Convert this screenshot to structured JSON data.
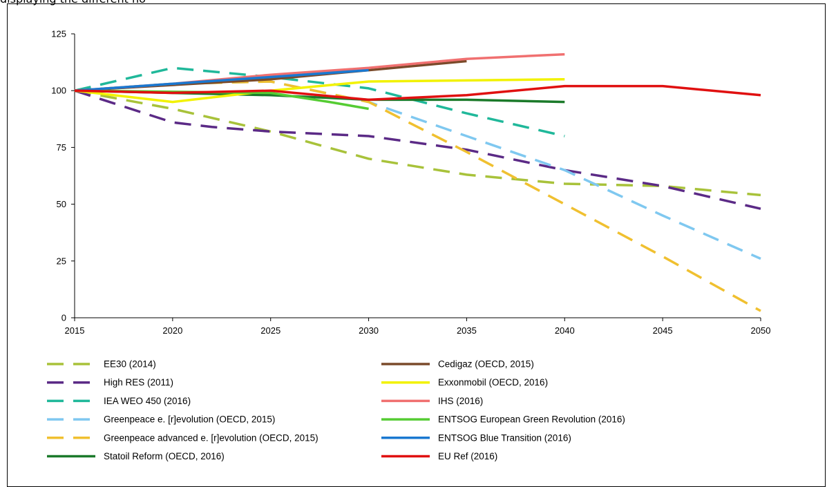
{
  "header_fragment": "displaying the different ho",
  "chart_data": {
    "type": "line",
    "title": "",
    "xlabel": "",
    "ylabel": "",
    "xlim": [
      2015,
      2050
    ],
    "ylim": [
      0,
      125
    ],
    "x_ticks": [
      2015,
      2020,
      2025,
      2030,
      2035,
      2040,
      2045,
      2050
    ],
    "y_ticks": [
      0,
      25,
      50,
      75,
      100,
      125
    ],
    "grid": false,
    "legend_position": "bottom",
    "series": [
      {
        "name": "EE30 (2014)",
        "color": "#a8c23a",
        "dashed": true,
        "points": [
          [
            2015,
            100
          ],
          [
            2020,
            92
          ],
          [
            2025,
            82
          ],
          [
            2030,
            70
          ],
          [
            2035,
            63
          ],
          [
            2040,
            59
          ],
          [
            2045,
            58
          ],
          [
            2050,
            54
          ]
        ]
      },
      {
        "name": "High RES (2011)",
        "color": "#5b2a86",
        "dashed": true,
        "points": [
          [
            2015,
            100
          ],
          [
            2020,
            86
          ],
          [
            2022,
            84
          ],
          [
            2025,
            82
          ],
          [
            2030,
            80
          ],
          [
            2035,
            74
          ],
          [
            2040,
            65
          ],
          [
            2045,
            58
          ],
          [
            2050,
            48
          ]
        ]
      },
      {
        "name": "IEA WEO 450 (2016)",
        "color": "#20b89a",
        "dashed": true,
        "points": [
          [
            2015,
            100
          ],
          [
            2020,
            110
          ],
          [
            2025,
            106
          ],
          [
            2030,
            101
          ],
          [
            2035,
            90
          ],
          [
            2040,
            80
          ]
        ]
      },
      {
        "name": "Greenpeace e. [r]evolution (OECD, 2015)",
        "color": "#7fc8f0",
        "dashed": true,
        "points": [
          [
            2015,
            100
          ],
          [
            2020,
            103
          ],
          [
            2025,
            104
          ],
          [
            2030,
            95
          ],
          [
            2035,
            80
          ],
          [
            2040,
            65
          ],
          [
            2045,
            45
          ],
          [
            2050,
            26
          ]
        ]
      },
      {
        "name": "Greenpeace advanced e. [r]evolution (OECD, 2015)",
        "color": "#f0c030",
        "dashed": true,
        "points": [
          [
            2015,
            100
          ],
          [
            2020,
            103
          ],
          [
            2025,
            104
          ],
          [
            2030,
            95
          ],
          [
            2035,
            73
          ],
          [
            2040,
            50
          ],
          [
            2045,
            27
          ],
          [
            2050,
            3
          ]
        ]
      },
      {
        "name": "Statoil Reform (OECD, 2016)",
        "color": "#1b7a2a",
        "dashed": false,
        "points": [
          [
            2015,
            100
          ],
          [
            2020,
            99
          ],
          [
            2025,
            98
          ],
          [
            2030,
            96
          ],
          [
            2035,
            96
          ],
          [
            2040,
            95
          ]
        ]
      },
      {
        "name": "Cedigaz (OECD, 2015)",
        "color": "#7a4a2a",
        "dashed": false,
        "points": [
          [
            2015,
            100
          ],
          [
            2025,
            105
          ],
          [
            2030,
            109
          ],
          [
            2035,
            113
          ]
        ]
      },
      {
        "name": "Exxonmobil (OECD, 2016)",
        "color": "#f2f200",
        "dashed": false,
        "points": [
          [
            2015,
            100
          ],
          [
            2020,
            95
          ],
          [
            2025,
            100
          ],
          [
            2030,
            104
          ],
          [
            2040,
            105
          ]
        ]
      },
      {
        "name": "IHS (2016)",
        "color": "#f07070",
        "dashed": false,
        "points": [
          [
            2015,
            100
          ],
          [
            2020,
            103
          ],
          [
            2025,
            107
          ],
          [
            2030,
            110
          ],
          [
            2035,
            114
          ],
          [
            2040,
            116
          ]
        ]
      },
      {
        "name": "ENTSOG European Green Revolution (2016)",
        "color": "#55cc33",
        "dashed": false,
        "points": [
          [
            2015,
            100
          ],
          [
            2025,
            99
          ],
          [
            2028,
            95
          ],
          [
            2030,
            92
          ]
        ]
      },
      {
        "name": "ENTSOG Blue Transition (2016)",
        "color": "#1a78d0",
        "dashed": false,
        "points": [
          [
            2015,
            100
          ],
          [
            2020,
            103
          ],
          [
            2025,
            106
          ],
          [
            2030,
            109
          ]
        ]
      },
      {
        "name": "EU Ref (2016)",
        "color": "#e01010",
        "dashed": false,
        "points": [
          [
            2015,
            100
          ],
          [
            2020,
            99
          ],
          [
            2025,
            100
          ],
          [
            2030,
            96
          ],
          [
            2035,
            98
          ],
          [
            2040,
            102
          ],
          [
            2045,
            102
          ],
          [
            2050,
            98
          ]
        ]
      }
    ],
    "legend_order": [
      [
        "EE30 (2014)",
        "Cedigaz (OECD, 2015)"
      ],
      [
        "High RES (2011)",
        "Exxonmobil (OECD, 2016)"
      ],
      [
        "IEA WEO 450 (2016)",
        "IHS (2016)"
      ],
      [
        "Greenpeace e. [r]evolution (OECD, 2015)",
        "ENTSOG European Green Revolution (2016)"
      ],
      [
        "Greenpeace advanced e. [r]evolution (OECD, 2015)",
        "ENTSOG Blue Transition (2016)"
      ],
      [
        "Statoil Reform (OECD, 2016)",
        "EU Ref (2016)"
      ]
    ]
  }
}
